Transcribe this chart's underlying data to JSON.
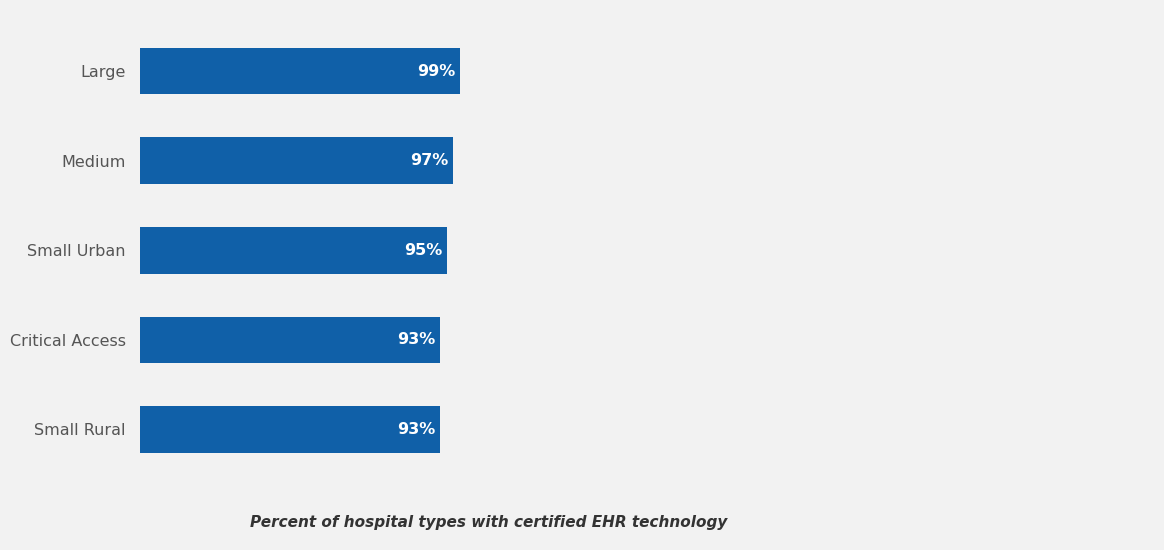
{
  "categories": [
    "Small Rural",
    "Critical Access",
    "Small Urban",
    "Medium",
    "Large"
  ],
  "values": [
    93,
    93,
    95,
    97,
    99
  ],
  "bar_color": "#1060a8",
  "background_color": "#f2f2f2",
  "label_color": "#555555",
  "value_label_color": "#ffffff",
  "xlabel": "Percent of hospital types with certified EHR technology",
  "xlim": [
    0,
    180
  ],
  "bar_height": 0.52,
  "label_fontsize": 11.5,
  "value_fontsize": 11.5,
  "xlabel_fontsize": 11
}
